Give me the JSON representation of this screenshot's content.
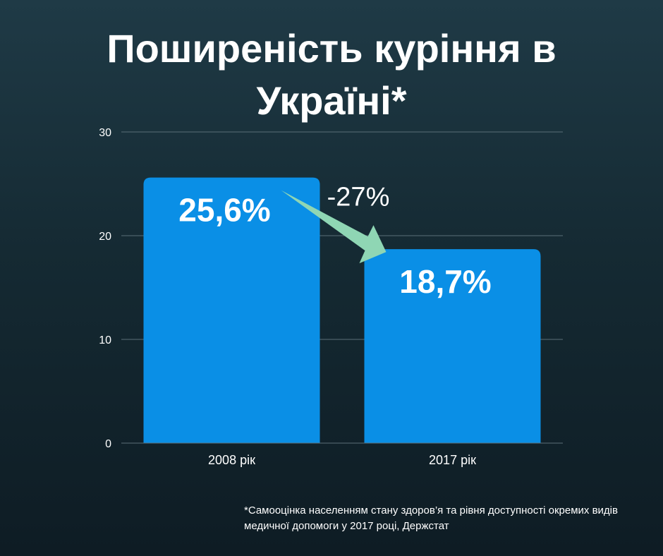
{
  "chart_data": {
    "type": "bar",
    "title_line1": "Поширеність куріння в",
    "title_line2": "Україні*",
    "categories": [
      "2008 рік",
      "2017 рік"
    ],
    "values": [
      25.6,
      18.7
    ],
    "data_labels": [
      "25,6%",
      "18,7%"
    ],
    "ylim": [
      0,
      30
    ],
    "yticks": [
      0,
      10,
      20,
      30
    ],
    "grid": true,
    "annotation": "-27%"
  },
  "colors": {
    "bar": "#0a8fe6",
    "arrow": "#8fd6b4",
    "grid": "#5b6f78"
  },
  "footnote": {
    "line1": "*Самооцінка населенням стану здоров’я та рівня доступності окремих видів",
    "line2": "медичної допомоги у 2017 році, Держстат"
  }
}
